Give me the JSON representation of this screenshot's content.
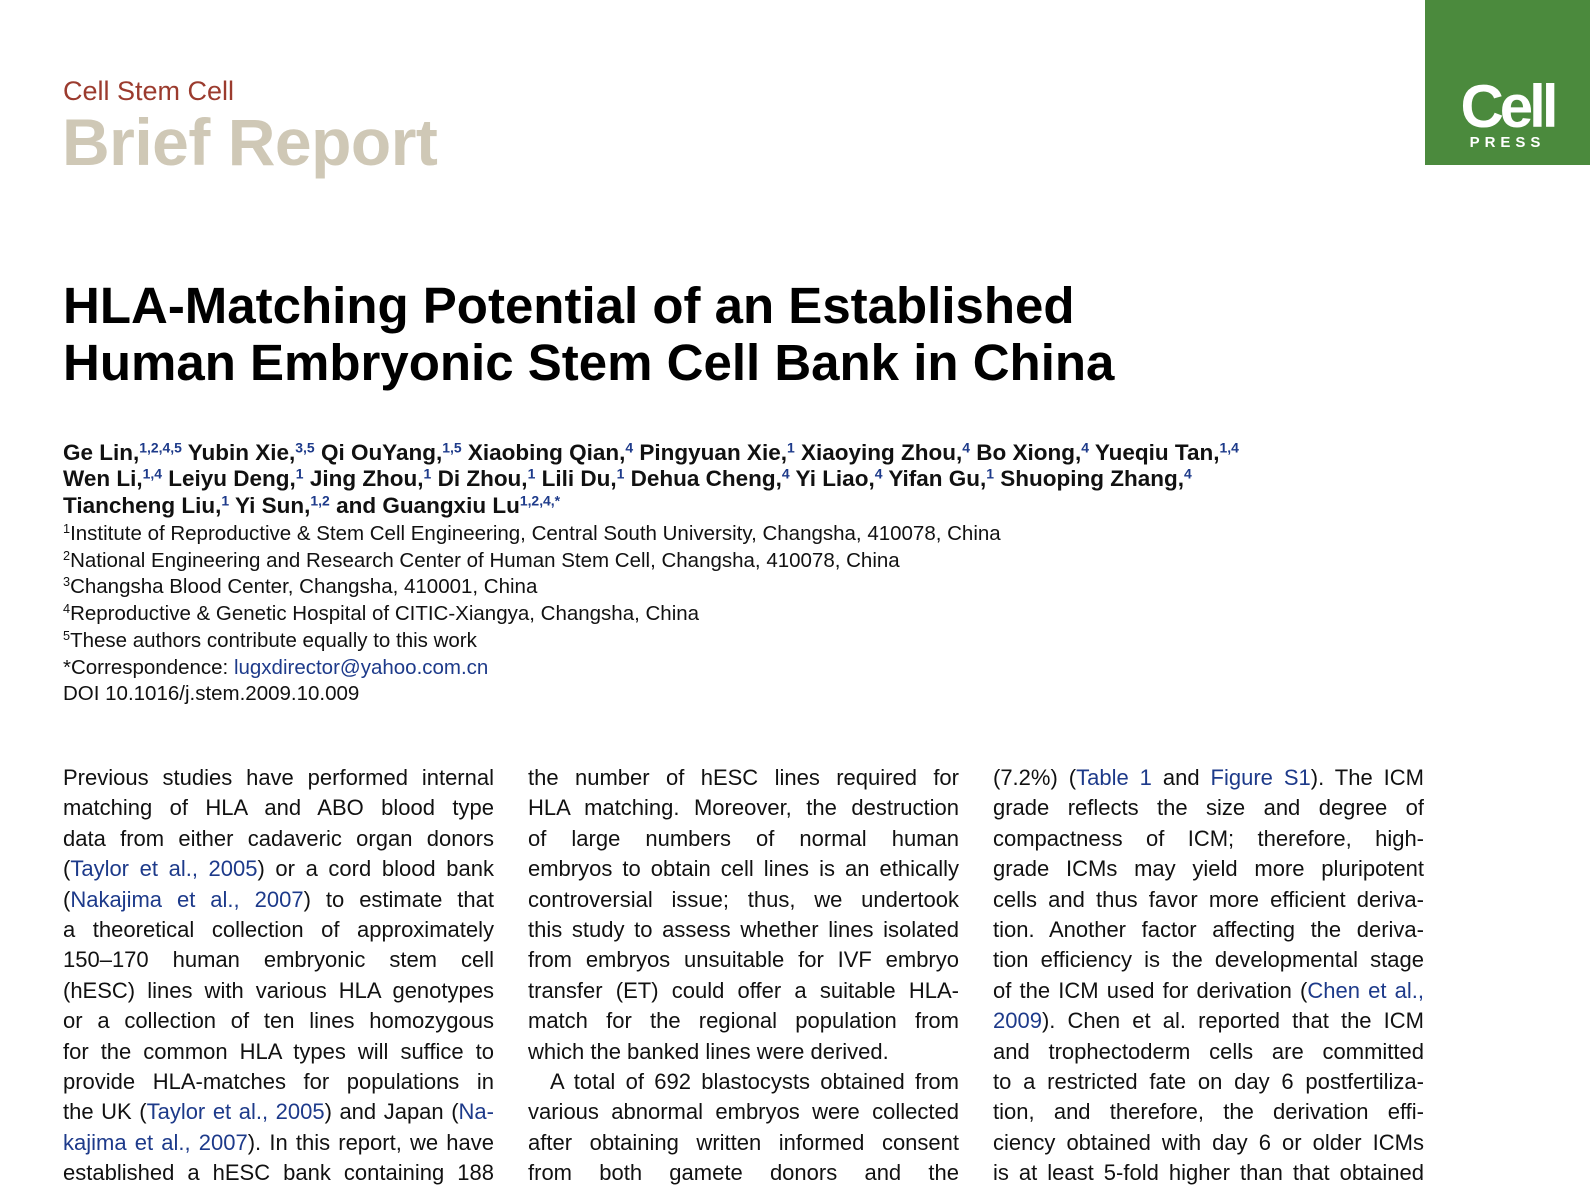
{
  "header": {
    "journal": "Cell Stem Cell",
    "section": "Brief Report",
    "logo": {
      "name": "Cell",
      "sub": "PRESS"
    }
  },
  "title": [
    "HLA-Matching Potential of an Established",
    "Human Embryonic Stem Cell Bank in China"
  ],
  "authors": [
    [
      {
        "name": "Ge Lin,",
        "sup": "1,2,4,5"
      },
      {
        "name": "Yubin Xie,",
        "sup": "3,5"
      },
      {
        "name": "Qi OuYang,",
        "sup": "1,5"
      },
      {
        "name": "Xiaobing Qian,",
        "sup": "4"
      },
      {
        "name": "Pingyuan Xie,",
        "sup": "1"
      },
      {
        "name": "Xiaoying Zhou,",
        "sup": "4"
      },
      {
        "name": "Bo Xiong,",
        "sup": "4"
      },
      {
        "name": "Yueqiu Tan,",
        "sup": "1,4"
      }
    ],
    [
      {
        "name": "Wen Li,",
        "sup": "1,4"
      },
      {
        "name": "Leiyu Deng,",
        "sup": "1"
      },
      {
        "name": "Jing Zhou,",
        "sup": "1"
      },
      {
        "name": "Di Zhou,",
        "sup": "1"
      },
      {
        "name": "Lili Du,",
        "sup": "1"
      },
      {
        "name": "Dehua Cheng,",
        "sup": "4"
      },
      {
        "name": "Yi Liao,",
        "sup": "4"
      },
      {
        "name": "Yifan Gu,",
        "sup": "1"
      },
      {
        "name": "Shuoping Zhang,",
        "sup": "4"
      }
    ],
    [
      {
        "name": "Tiancheng Liu,",
        "sup": "1"
      },
      {
        "name": "Yi Sun,",
        "sup": "1,2"
      },
      {
        "name": "and Guangxiu Lu",
        "sup": "1,2,4,*"
      }
    ]
  ],
  "affiliations": [
    {
      "sup": "1",
      "text": "Institute of Reproductive & Stem Cell Engineering, Central South University, Changsha, 410078, China"
    },
    {
      "sup": "2",
      "text": "National Engineering and Research Center of Human Stem Cell, Changsha, 410078, China"
    },
    {
      "sup": "3",
      "text": "Changsha Blood Center, Changsha, 410001, China"
    },
    {
      "sup": "4",
      "text": "Reproductive & Genetic Hospital of CITIC-Xiangya, Changsha, China"
    },
    {
      "sup": "5",
      "text": "These authors contribute equally to this work"
    }
  ],
  "correspondence": {
    "label": "*Correspondence: ",
    "email": "lugxdirector@yahoo.com.cn"
  },
  "doi": "DOI 10.1016/j.stem.2009.10.009",
  "body": {
    "columns": [
      [
        [
          "Previous studies have performed internal",
          "matching of HLA and ABO blood type",
          "data from either cadaveric organ donors",
          [
            "(",
            {
              "link": "Taylor et al., 2005"
            },
            ") or a cord blood bank"
          ],
          [
            "(",
            {
              "link": "Nakajima et al., 2007"
            },
            ") to estimate that"
          ],
          "a theoretical collection of approximately",
          "150–170 human embryonic stem cell",
          "(hESC) lines with various HLA genotypes",
          "or a collection of ten lines homozygous",
          "for the common HLA types will suffice to",
          "provide HLA-matches for populations in",
          [
            "the UK (",
            {
              "link": "Taylor et al., 2005"
            },
            ") and Japan (",
            {
              "link": "Na-"
            }
          ],
          [
            {
              "link": "kajima et al., 2007"
            },
            "). In this report, we have"
          ],
          "established a hESC bank containing 188"
        ]
      ],
      [
        [
          "the number of hESC lines required for",
          "HLA matching. Moreover, the destruction",
          "of large numbers of normal human",
          "embryos to obtain cell lines is an ethically",
          "controversial issue; thus, we undertook",
          "this study to assess whether lines isolated",
          "from embryos unsuitable for IVF embryo",
          "transfer (ET) could offer a suitable HLA-",
          "match for the regional population from",
          "which the banked lines were derived."
        ],
        [
          "A total of 692 blastocysts obtained from",
          "various abnormal embryos were collected",
          "after obtaining written informed consent",
          "from both gamete donors and the"
        ]
      ],
      [
        [
          [
            "(7.2%) (",
            {
              "link": "Table 1"
            },
            " and ",
            {
              "link": "Figure S1"
            },
            "). The ICM"
          ],
          "grade reflects the size and degree of",
          "compactness of ICM; therefore, high-",
          "grade ICMs may yield more pluripotent",
          "cells and thus favor more efficient deriva-",
          "tion. Another factor affecting the deriva-",
          "tion efficiency is the developmental stage",
          [
            "of the ICM used for derivation (",
            {
              "link": "Chen et al.,"
            }
          ],
          [
            {
              "link": "2009"
            },
            "). Chen et al. reported that the ICM"
          ],
          "and trophectoderm cells are committed",
          "to a restricted fate on day 6 postfertiliza-",
          "tion, and therefore, the derivation effi-",
          "ciency obtained with day 6 or older ICMs",
          "is at least 5-fold higher than that obtained"
        ]
      ]
    ]
  }
}
